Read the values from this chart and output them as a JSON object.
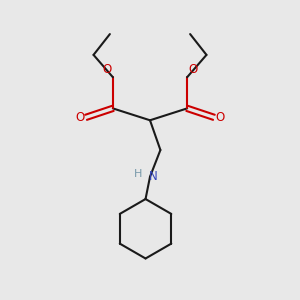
{
  "bg_color": "#e8e8e8",
  "bond_color": "#1a1a1a",
  "oxygen_color": "#cc0000",
  "nitrogen_color": "#3344bb",
  "hydrogen_color": "#7799aa",
  "line_width": 1.5,
  "fig_size": [
    3.0,
    3.0
  ],
  "dpi": 100,
  "xlim": [
    0,
    10
  ],
  "ylim": [
    0,
    10
  ]
}
